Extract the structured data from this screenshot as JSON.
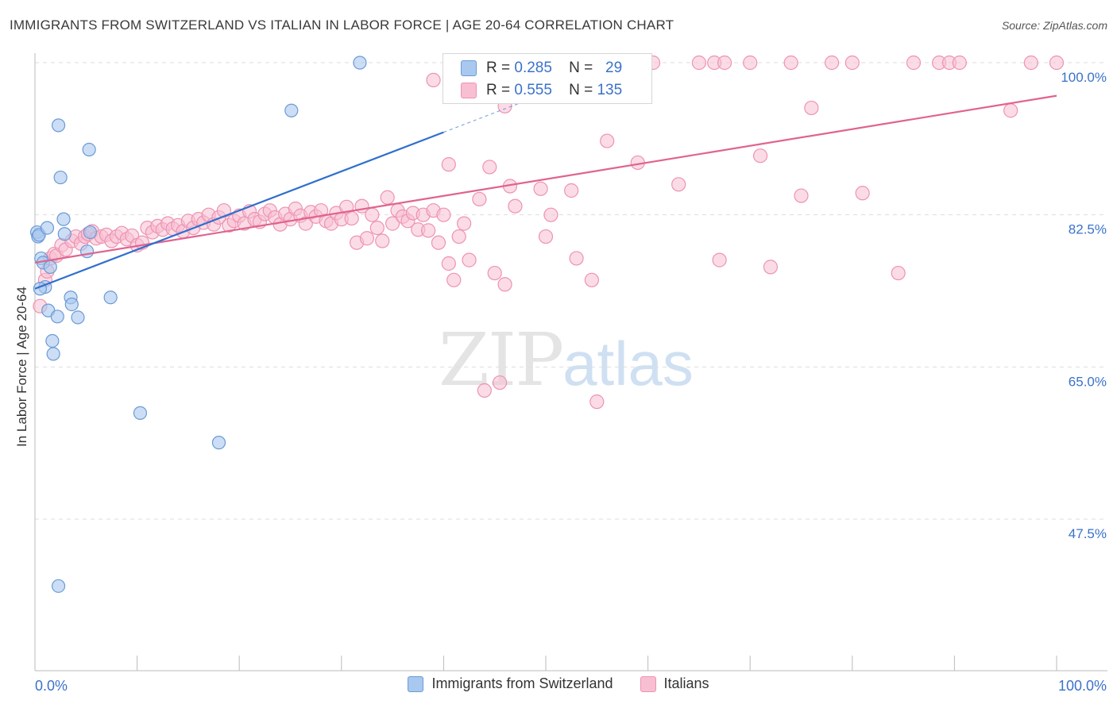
{
  "title": "IMMIGRANTS FROM SWITZERLAND VS ITALIAN IN LABOR FORCE | AGE 20-64 CORRELATION CHART",
  "source": "Source: ZipAtlas.com",
  "watermark": {
    "zip": "ZIP",
    "atlas": "atlas"
  },
  "legend": {
    "rows": [
      {
        "r_label": "R =",
        "r_value": "0.285",
        "n_label": "N =",
        "n_value": "29"
      },
      {
        "r_label": "R =",
        "r_value": "0.555",
        "n_label": "N =",
        "n_value": "135"
      }
    ]
  },
  "bottom_legend": {
    "items": [
      {
        "label": "Immigrants from Switzerland"
      },
      {
        "label": "Italians"
      }
    ]
  },
  "colors": {
    "swiss_fill": "#a9c8ef",
    "swiss_stroke": "#6b9ad6",
    "swiss_line": "#2f6fce",
    "italian_fill": "#f8bfd2",
    "italian_stroke": "#ee92b2",
    "italian_line": "#e0638f",
    "axis_text": "#3a72c9",
    "grid": "#dddddd"
  },
  "chart_data": {
    "type": "scatter",
    "title": "IMMIGRANTS FROM SWITZERLAND VS ITALIAN IN LABOR FORCE | AGE 20-64 CORRELATION CHART",
    "xlabel": "",
    "ylabel": "In Labor Force | Age 20-64",
    "xlim": [
      0,
      100
    ],
    "ylim": [
      30,
      101
    ],
    "x_tick_labels": [
      "0.0%",
      "100.0%"
    ],
    "y_tick_labels": [
      "100.0%",
      "82.5%",
      "65.0%",
      "47.5%"
    ],
    "y_ticks": [
      100,
      82.5,
      65,
      47.5
    ],
    "grid": true,
    "legend_position": "top-center",
    "series": [
      {
        "name": "Immigrants from Switzerland",
        "r": 0.285,
        "n": 29,
        "trend": {
          "x0": 0,
          "y0": 74.0,
          "x1": 40,
          "y1": 92.0,
          "dashed_to_x": 50,
          "dashed_to_y": 96.5
        },
        "points": [
          [
            0.2,
            80.5
          ],
          [
            0.3,
            80.0
          ],
          [
            0.4,
            80.2
          ],
          [
            0.6,
            77.5
          ],
          [
            0.8,
            77.0
          ],
          [
            1.0,
            74.2
          ],
          [
            1.2,
            81.0
          ],
          [
            1.3,
            71.5
          ],
          [
            1.5,
            76.5
          ],
          [
            1.7,
            68.0
          ],
          [
            1.8,
            66.5
          ],
          [
            2.2,
            70.8
          ],
          [
            2.3,
            92.8
          ],
          [
            2.5,
            86.8
          ],
          [
            2.8,
            82.0
          ],
          [
            2.9,
            80.3
          ],
          [
            3.5,
            73.0
          ],
          [
            3.6,
            72.2
          ],
          [
            4.2,
            70.7
          ],
          [
            5.1,
            78.3
          ],
          [
            5.3,
            90.0
          ],
          [
            5.4,
            80.5
          ],
          [
            7.4,
            73.0
          ],
          [
            10.3,
            59.7
          ],
          [
            18.0,
            56.3
          ],
          [
            25.1,
            94.5
          ],
          [
            31.8,
            100.0
          ],
          [
            0.5,
            74.0
          ],
          [
            2.3,
            39.8
          ]
        ]
      },
      {
        "name": "Italians",
        "r": 0.555,
        "n": 135,
        "trend": {
          "x0": 0,
          "y0": 77.0,
          "x1": 100,
          "y1": 96.2
        },
        "points": [
          [
            0.5,
            72.0
          ],
          [
            1.0,
            75.0
          ],
          [
            1.2,
            76.0
          ],
          [
            1.5,
            77.5
          ],
          [
            1.9,
            78.0
          ],
          [
            2.1,
            77.8
          ],
          [
            2.6,
            79.0
          ],
          [
            3.0,
            78.5
          ],
          [
            3.6,
            79.5
          ],
          [
            4.0,
            80.0
          ],
          [
            4.5,
            79.2
          ],
          [
            4.9,
            80.0
          ],
          [
            5.2,
            80.3
          ],
          [
            5.6,
            80.6
          ],
          [
            6.0,
            79.8
          ],
          [
            6.5,
            80.0
          ],
          [
            7.0,
            80.2
          ],
          [
            7.5,
            79.5
          ],
          [
            8.0,
            80.0
          ],
          [
            8.5,
            80.4
          ],
          [
            9.0,
            79.7
          ],
          [
            9.5,
            80.1
          ],
          [
            10.0,
            79.0
          ],
          [
            10.5,
            79.3
          ],
          [
            11.0,
            81.0
          ],
          [
            11.5,
            80.5
          ],
          [
            12.0,
            81.2
          ],
          [
            12.5,
            80.8
          ],
          [
            13.0,
            81.5
          ],
          [
            13.5,
            80.9
          ],
          [
            14.0,
            81.3
          ],
          [
            14.5,
            80.6
          ],
          [
            15.0,
            81.8
          ],
          [
            15.5,
            81.0
          ],
          [
            16.0,
            82.0
          ],
          [
            16.5,
            81.6
          ],
          [
            17.0,
            82.5
          ],
          [
            17.5,
            81.4
          ],
          [
            18.0,
            82.2
          ],
          [
            18.5,
            83.0
          ],
          [
            19.0,
            81.3
          ],
          [
            19.5,
            81.8
          ],
          [
            20.0,
            82.4
          ],
          [
            20.5,
            81.5
          ],
          [
            21.0,
            82.9
          ],
          [
            21.5,
            82.0
          ],
          [
            22.0,
            81.7
          ],
          [
            22.5,
            82.6
          ],
          [
            23.0,
            83.0
          ],
          [
            23.5,
            82.2
          ],
          [
            24.0,
            81.4
          ],
          [
            24.5,
            82.6
          ],
          [
            25.0,
            82.0
          ],
          [
            25.5,
            83.2
          ],
          [
            26.0,
            82.4
          ],
          [
            26.5,
            81.5
          ],
          [
            27.0,
            82.8
          ],
          [
            27.5,
            82.3
          ],
          [
            28.0,
            83.0
          ],
          [
            28.5,
            81.8
          ],
          [
            29.0,
            81.5
          ],
          [
            29.5,
            82.7
          ],
          [
            30.0,
            82.0
          ],
          [
            30.5,
            83.4
          ],
          [
            31.0,
            82.1
          ],
          [
            31.5,
            79.3
          ],
          [
            32.0,
            83.5
          ],
          [
            32.5,
            79.8
          ],
          [
            33.0,
            82.5
          ],
          [
            33.5,
            81.0
          ],
          [
            34.0,
            79.5
          ],
          [
            34.5,
            84.5
          ],
          [
            35.0,
            81.5
          ],
          [
            35.5,
            83.0
          ],
          [
            36.0,
            82.3
          ],
          [
            36.5,
            81.8
          ],
          [
            37.0,
            82.7
          ],
          [
            37.5,
            80.8
          ],
          [
            38.0,
            82.5
          ],
          [
            38.5,
            80.7
          ],
          [
            39.0,
            83.0
          ],
          [
            39.5,
            79.3
          ],
          [
            40.0,
            82.5
          ],
          [
            40.5,
            76.9
          ],
          [
            41.0,
            75.0
          ],
          [
            41.5,
            80.0
          ],
          [
            42.0,
            81.5
          ],
          [
            42.5,
            77.3
          ],
          [
            43.5,
            84.3
          ],
          [
            44.0,
            62.3
          ],
          [
            45.0,
            75.8
          ],
          [
            45.5,
            63.2
          ],
          [
            46.0,
            74.5
          ],
          [
            46.5,
            85.8
          ],
          [
            47.0,
            83.5
          ],
          [
            49.5,
            85.5
          ],
          [
            50.0,
            80.0
          ],
          [
            50.5,
            82.5
          ],
          [
            52.5,
            85.3
          ],
          [
            53.0,
            77.5
          ],
          [
            54.5,
            75.0
          ],
          [
            55.0,
            61.0
          ],
          [
            63.0,
            86.0
          ],
          [
            67.0,
            77.3
          ],
          [
            71.0,
            89.3
          ],
          [
            72.0,
            76.5
          ],
          [
            75.0,
            84.7
          ],
          [
            76.0,
            94.8
          ],
          [
            81.0,
            85.0
          ],
          [
            84.5,
            75.8
          ],
          [
            40.5,
            88.3
          ],
          [
            44.5,
            88.0
          ],
          [
            46.0,
            95.0
          ],
          [
            59.0,
            88.5
          ],
          [
            56.0,
            91.0
          ],
          [
            60.5,
            100.0
          ],
          [
            65.0,
            100.0
          ],
          [
            66.5,
            100.0
          ],
          [
            67.5,
            100.0
          ],
          [
            70.0,
            100.0
          ],
          [
            74.0,
            100.0
          ],
          [
            78.0,
            100.0
          ],
          [
            80.0,
            100.0
          ],
          [
            86.0,
            100.0
          ],
          [
            88.5,
            100.0
          ],
          [
            89.5,
            100.0
          ],
          [
            90.5,
            100.0
          ],
          [
            97.5,
            100.0
          ],
          [
            100.0,
            100.0
          ],
          [
            95.5,
            94.5
          ],
          [
            48.0,
            100.0
          ],
          [
            52.0,
            100.0
          ],
          [
            55.5,
            100.0
          ],
          [
            57.5,
            100.0
          ],
          [
            39.0,
            98.0
          ]
        ]
      }
    ]
  }
}
